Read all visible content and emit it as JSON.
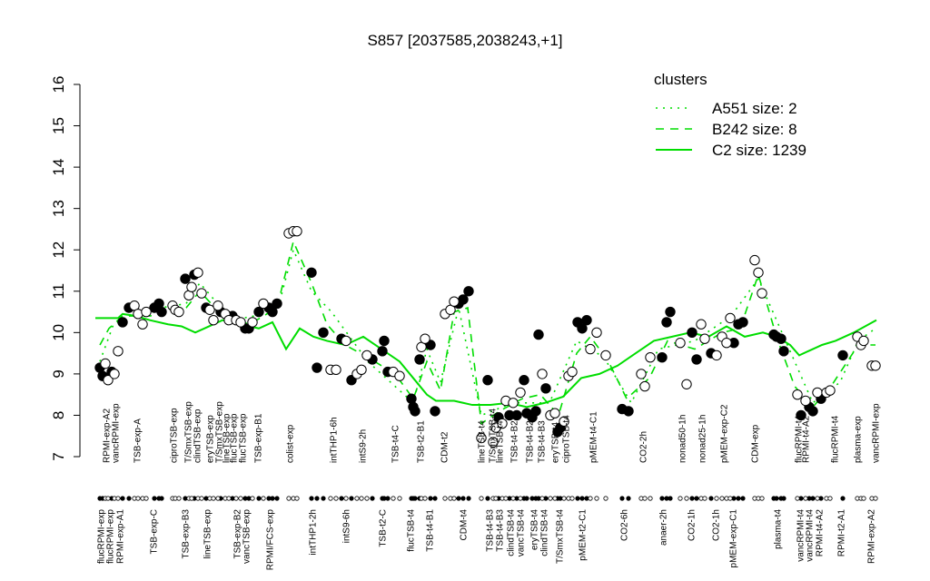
{
  "chart_data": {
    "type": "scatter",
    "title": "S857 [2037585,2038243,+1]",
    "xlim": [
      -34,
      894
    ],
    "ylim": [
      7,
      16
    ],
    "yticks": [
      7,
      8,
      9,
      10,
      11,
      12,
      13,
      14,
      15,
      16
    ],
    "legend_title": "clusters",
    "legend_color": "#00dd00",
    "points": [
      {
        "marker": "filled",
        "x": [
          5,
          8,
          18,
          30,
          37,
          65,
          70,
          73,
          99,
          109,
          122,
          138,
          151,
          165,
          169,
          180,
          191,
          195,
          200,
          238,
          244,
          251,
          271,
          282,
          305,
          316,
          318,
          322,
          348,
          350,
          352,
          357,
          369,
          374,
          400,
          405,
          411,
          432,
          444,
          456,
          464,
          472,
          475,
          481,
          485,
          488,
          496,
          509,
          512,
          531,
          536,
          541,
          580,
          587,
          624,
          629,
          633,
          657,
          662,
          678,
          703,
          708,
          713,
          747,
          750,
          755,
          758,
          777,
          786,
          790,
          799,
          823
        ],
        "values": [
          9.15,
          8.95,
          9.05,
          10.25,
          10.6,
          10.6,
          10.7,
          10.5,
          11.3,
          11.4,
          10.6,
          10.5,
          10.4,
          10.1,
          10.1,
          10.5,
          10.6,
          10.5,
          10.7,
          11.45,
          9.15,
          10.0,
          9.85,
          8.85,
          9.35,
          9.55,
          9.8,
          9.05,
          8.4,
          8.2,
          8.1,
          9.35,
          9.7,
          8.1,
          10.7,
          10.8,
          11.0,
          8.85,
          7.95,
          8.0,
          8.0,
          8.85,
          8.05,
          7.95,
          8.1,
          9.95,
          8.65,
          7.6,
          7.7,
          10.25,
          10.1,
          10.3,
          8.15,
          8.1,
          9.4,
          10.25,
          10.5,
          10.0,
          9.35,
          9.5,
          9.75,
          10.2,
          10.25,
          9.95,
          9.9,
          9.85,
          9.55,
          8.0,
          8.2,
          8.1,
          8.4,
          9.45
        ]
      },
      {
        "marker": "open",
        "x": [
          11,
          14,
          21,
          25,
          43,
          47,
          52,
          56,
          85,
          88,
          92,
          103,
          106,
          113,
          117,
          126,
          130,
          135,
          143,
          147,
          155,
          160,
          173,
          185,
          213,
          218,
          222,
          259,
          265,
          276,
          288,
          293,
          299,
          328,
          335,
          359,
          363,
          385,
          391,
          395,
          425,
          438,
          441,
          448,
          452,
          460,
          468,
          492,
          501,
          506,
          516,
          521,
          525,
          545,
          552,
          562,
          601,
          605,
          611,
          644,
          651,
          667,
          671,
          684,
          690,
          695,
          699,
          726,
          730,
          734,
          773,
          782,
          795,
          805,
          809,
          839,
          843,
          846,
          855,
          859
        ],
        "values": [
          9.25,
          8.85,
          9.0,
          9.55,
          10.65,
          10.45,
          10.2,
          10.5,
          10.65,
          10.55,
          10.5,
          10.9,
          11.1,
          11.45,
          10.95,
          10.55,
          10.3,
          10.65,
          10.45,
          10.3,
          10.3,
          10.25,
          10.25,
          10.7,
          12.4,
          12.45,
          12.45,
          9.1,
          9.1,
          9.8,
          9.0,
          9.1,
          9.45,
          9.05,
          8.95,
          9.65,
          9.85,
          10.45,
          10.55,
          10.75,
          7.45,
          7.35,
          7.7,
          7.8,
          8.35,
          8.3,
          8.55,
          9.0,
          8.0,
          8.05,
          7.85,
          8.95,
          9.05,
          9.6,
          10.0,
          9.45,
          9.0,
          8.7,
          9.4,
          9.75,
          8.75,
          10.2,
          9.85,
          9.45,
          9.9,
          9.75,
          10.35,
          11.75,
          11.45,
          10.95,
          8.5,
          8.35,
          8.55,
          8.55,
          8.6,
          9.9,
          9.7,
          9.8,
          9.2,
          9.2
        ]
      }
    ],
    "series": [
      {
        "name": "A551 size: 2",
        "style": "dotted",
        "x": [
          5,
          20,
          45,
          100,
          115,
          150,
          200,
          218,
          238,
          260,
          300,
          350,
          365,
          380,
          400,
          425,
          460,
          500,
          530,
          560,
          590,
          620,
          660,
          700,
          730,
          760,
          790,
          820,
          840,
          859
        ],
        "values": [
          9.3,
          10.2,
          10.5,
          10.7,
          11.2,
          10.3,
          10.5,
          12.0,
          11.0,
          10.5,
          9.3,
          8.3,
          9.6,
          8.8,
          10.6,
          8.0,
          8.3,
          8.3,
          9.8,
          9.4,
          8.3,
          9.6,
          9.8,
          10.4,
          11.3,
          9.8,
          8.3,
          8.8,
          9.8,
          10.1
        ]
      },
      {
        "name": "B242 size: 8",
        "style": "dashed",
        "x": [
          5,
          15,
          30,
          60,
          100,
          115,
          140,
          170,
          200,
          218,
          238,
          255,
          275,
          300,
          330,
          350,
          365,
          380,
          395,
          410,
          425,
          445,
          470,
          490,
          510,
          530,
          545,
          565,
          585,
          610,
          630,
          660,
          690,
          710,
          730,
          750,
          770,
          790,
          810,
          840,
          859
        ],
        "values": [
          9.7,
          10.1,
          10.4,
          10.4,
          10.6,
          11.0,
          10.4,
          10.2,
          10.6,
          12.2,
          11.2,
          10.2,
          9.7,
          9.4,
          9.0,
          8.4,
          9.3,
          8.6,
          10.5,
          10.6,
          7.8,
          8.1,
          8.4,
          8.5,
          8.0,
          9.5,
          9.9,
          9.3,
          8.4,
          8.9,
          9.8,
          9.6,
          10.0,
          10.1,
          11.4,
          9.9,
          8.7,
          8.2,
          8.7,
          9.7,
          9.7
        ]
      },
      {
        "name": "C2 size: 1239",
        "style": "solid",
        "x": [
          0,
          25,
          30,
          45,
          60,
          80,
          95,
          110,
          120,
          140,
          160,
          180,
          195,
          210,
          225,
          240,
          255,
          275,
          295,
          315,
          335,
          350,
          365,
          375,
          395,
          415,
          435,
          455,
          475,
          495,
          515,
          535,
          555,
          575,
          595,
          615,
          635,
          655,
          675,
          695,
          715,
          735,
          750,
          765,
          775,
          785,
          800,
          815,
          835,
          860
        ],
        "values": [
          10.35,
          10.35,
          10.45,
          10.4,
          10.3,
          10.2,
          10.15,
          10.0,
          10.1,
          10.3,
          10.2,
          10.1,
          10.25,
          9.6,
          10.1,
          9.9,
          9.8,
          9.7,
          9.9,
          9.6,
          9.3,
          8.9,
          8.5,
          8.35,
          8.35,
          8.25,
          8.25,
          8.3,
          8.2,
          8.3,
          8.45,
          8.9,
          9.0,
          9.2,
          9.5,
          9.8,
          9.9,
          10.0,
          9.9,
          10.15,
          9.9,
          10.0,
          9.9,
          9.7,
          9.45,
          9.55,
          9.7,
          9.8,
          10.0,
          10.3
        ]
      }
    ],
    "top_labels": {
      "x": [
        13,
        23,
        47,
        87,
        103,
        113,
        127,
        137,
        145,
        153,
        163,
        180,
        215,
        263,
        295,
        331,
        359,
        385,
        426,
        438,
        446,
        462,
        479,
        492,
        507,
        519,
        549,
        604,
        647,
        669,
        693,
        727,
        775,
        783,
        815,
        840,
        860
      ],
      "labels": [
        "RPMI-exp-A2",
        "vancRPMI-exp",
        "TSB-exp-A",
        "ciproTSB-exp",
        "T/SmxTSB-exp",
        "clindTSB-exp",
        "eryTSB-exp",
        "T/SmxTSB-exp",
        "lineTSB-exp",
        "flucTSB-exp",
        "flucTSB-exp",
        "TSB-exp-B1",
        "colist-exp",
        "intTHP1-6h",
        "intS9-2h",
        "TSB-t4-C",
        "TSB-t2-B1",
        "CDM-t2",
        "lineTSB-t4",
        "T/SmxTSB-t4",
        "lineTSB-t4",
        "TSB-t4-B2",
        "TSB-t4-B2",
        "TSB-t4-B3",
        "eryTSB-t4",
        "ciproTSB-t4",
        "pMEM-t4-C1",
        "CO2-2h",
        "nonad50-1h",
        "nonad25-1h",
        "pMEM-exp-C2",
        "CDM-exp",
        "flucRPMI-t4",
        "RPMI-t4-A2",
        "flucRPMI-t4",
        "plasma-exp",
        "vancRPMI-exp"
      ]
    },
    "bottom_labels": {
      "x": [
        7,
        17,
        28,
        65,
        100,
        124,
        157,
        167,
        193,
        240,
        277,
        317,
        348,
        369,
        406,
        435,
        446,
        458,
        469,
        484,
        495,
        512,
        537,
        583,
        626,
        657,
        684,
        703,
        752,
        777,
        787,
        798,
        822,
        855
      ],
      "labels": [
        "flucRPMI-exp",
        "flucRPMI-exp",
        "RPMI-exp-A1",
        "TSB-exp-C",
        "TSB-exp-B3",
        "lineTSB-exp",
        "TSB-exp-B2",
        "vancTSB-exp",
        "RPMI/FCS-exp",
        "intTHP1-2h",
        "intS9-6h",
        "TSB-t2-C",
        "flucTSB-t4",
        "TSB-t4-B1",
        "CDM-t4",
        "TSB-t4-B3",
        "TSB-t4-B3",
        "clindTSB-t4",
        "vancTSB-t4",
        "eryTSB-t4",
        "clindTSB-t4",
        "T/SmxTSB-t4",
        "pMEM-t2-C1",
        "CO2-6h",
        "anaer-2h",
        "CO2-1h",
        "CO2-1h",
        "pMEM-exp-C1",
        "plasma-t4",
        "vancRPMI-t4",
        "vancRPMI-t4",
        "RPMI-t4-A2",
        "RPMI-t2-A1",
        "RPMI-exp-A2"
      ]
    }
  }
}
